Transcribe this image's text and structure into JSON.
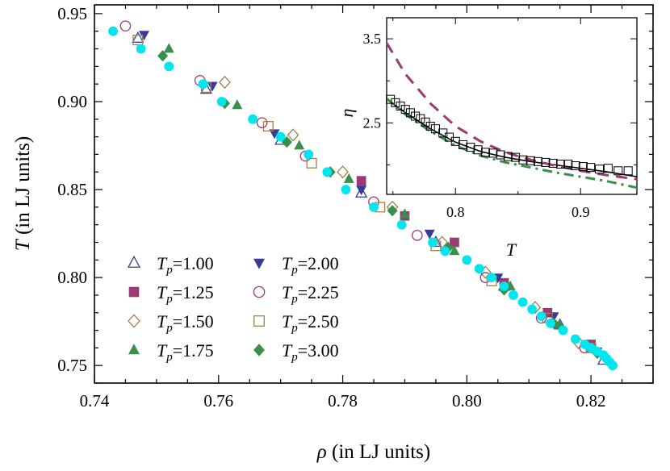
{
  "chart_data": [
    {
      "type": "scatter",
      "xlabel": {
        "symbol": "ρ",
        "text": " (in LJ units)"
      },
      "ylabel": {
        "symbol": "T",
        "text": " (in LJ units)"
      },
      "xlim": [
        0.74,
        0.83
      ],
      "ylim": [
        0.74,
        0.955
      ],
      "xticks": [
        "0.74",
        "0.76",
        "0.78",
        "0.80",
        "0.82"
      ],
      "yticks": [
        "0.75",
        "0.80",
        "0.85",
        "0.90",
        "0.95"
      ],
      "xtick_values": [
        0.74,
        0.76,
        0.78,
        0.8,
        0.82
      ],
      "ytick_values": [
        0.75,
        0.8,
        0.85,
        0.9,
        0.95
      ],
      "grid": false,
      "legend_position": "bottom-left",
      "series": [
        {
          "name": "T_p=1.00",
          "label_value": "1.00",
          "marker": "triangle-up-open",
          "color": "#3a3a9a",
          "points": [
            [
              0.747,
              0.936
            ],
            [
              0.758,
              0.907
            ],
            [
              0.77,
              0.878
            ],
            [
              0.783,
              0.848
            ],
            [
              0.795,
              0.82
            ],
            [
              0.806,
              0.795
            ],
            [
              0.815,
              0.773
            ],
            [
              0.822,
              0.753
            ]
          ]
        },
        {
          "name": "T_p=1.25",
          "label_value": "1.25",
          "marker": "square",
          "color": "#9b3a73",
          "points": [
            [
              0.783,
              0.855
            ],
            [
              0.79,
              0.835
            ],
            [
              0.798,
              0.82
            ],
            [
              0.806,
              0.797
            ],
            [
              0.813,
              0.78
            ],
            [
              0.82,
              0.762
            ]
          ]
        },
        {
          "name": "T_p=1.50",
          "label_value": "1.50",
          "marker": "diamond-open",
          "color": "#a08050",
          "points": [
            [
              0.761,
              0.911
            ],
            [
              0.772,
              0.881
            ],
            [
              0.78,
              0.86
            ],
            [
              0.788,
              0.84
            ],
            [
              0.796,
              0.82
            ],
            [
              0.803,
              0.803
            ],
            [
              0.811,
              0.783
            ],
            [
              0.818,
              0.763
            ]
          ]
        },
        {
          "name": "T_p=1.75",
          "label_value": "1.75",
          "marker": "triangle-up",
          "color": "#3a8f4a",
          "points": [
            [
              0.752,
              0.93
            ],
            [
              0.763,
              0.898
            ],
            [
              0.773,
              0.875
            ],
            [
              0.781,
              0.856
            ],
            [
              0.79,
              0.836
            ],
            [
              0.798,
              0.815
            ],
            [
              0.807,
              0.795
            ],
            [
              0.815,
              0.773
            ],
            [
              0.82,
              0.76
            ]
          ]
        },
        {
          "name": "T_p=2.00",
          "label_value": "2.00",
          "marker": "triangle-down",
          "color": "#3a3a9a",
          "points": [
            [
              0.748,
              0.938
            ],
            [
              0.759,
              0.909
            ],
            [
              0.769,
              0.882
            ],
            [
              0.783,
              0.85
            ],
            [
              0.794,
              0.825
            ],
            [
              0.805,
              0.8
            ],
            [
              0.814,
              0.778
            ],
            [
              0.821,
              0.758
            ]
          ]
        },
        {
          "name": "T_p=2.25",
          "label_value": "2.25",
          "marker": "circle-open",
          "color": "#9b3a73",
          "points": [
            [
              0.745,
              0.943
            ],
            [
              0.757,
              0.912
            ],
            [
              0.767,
              0.888
            ],
            [
              0.774,
              0.869
            ],
            [
              0.785,
              0.843
            ],
            [
              0.792,
              0.824
            ],
            [
              0.803,
              0.8
            ],
            [
              0.812,
              0.777
            ],
            [
              0.819,
              0.76
            ]
          ]
        },
        {
          "name": "T_p=2.50",
          "label_value": "2.50",
          "marker": "square-open",
          "color": "#a08050",
          "points": [
            [
              0.747,
              0.935
            ],
            [
              0.758,
              0.908
            ],
            [
              0.768,
              0.886
            ],
            [
              0.775,
              0.865
            ],
            [
              0.786,
              0.84
            ],
            [
              0.795,
              0.818
            ],
            [
              0.804,
              0.798
            ],
            [
              0.813,
              0.777
            ],
            [
              0.82,
              0.76
            ]
          ]
        },
        {
          "name": "T_p=3.00",
          "label_value": "3.00",
          "marker": "diamond",
          "color": "#3a8f4a",
          "points": [
            [
              0.751,
              0.926
            ],
            [
              0.761,
              0.899
            ],
            [
              0.771,
              0.877
            ],
            [
              0.778,
              0.86
            ],
            [
              0.788,
              0.838
            ],
            [
              0.797,
              0.817
            ],
            [
              0.806,
              0.793
            ],
            [
              0.814,
              0.774
            ],
            [
              0.821,
              0.757
            ]
          ]
        },
        {
          "marker": "circle",
          "color": "#00e5ee",
          "points": [
            [
              0.743,
              0.94
            ],
            [
              0.7475,
              0.93
            ],
            [
              0.752,
              0.92
            ],
            [
              0.7575,
              0.91
            ],
            [
              0.7605,
              0.9
            ],
            [
              0.7655,
              0.89
            ],
            [
              0.77,
              0.88
            ],
            [
              0.7745,
              0.87
            ],
            [
              0.7775,
              0.86
            ],
            [
              0.7805,
              0.85
            ],
            [
              0.785,
              0.84
            ],
            [
              0.7895,
              0.83
            ],
            [
              0.7945,
              0.82
            ],
            [
              0.7965,
              0.815
            ],
            [
              0.8,
              0.81
            ],
            [
              0.802,
              0.805
            ],
            [
              0.804,
              0.8
            ],
            [
              0.806,
              0.795
            ],
            [
              0.8075,
              0.79
            ],
            [
              0.809,
              0.786
            ],
            [
              0.8105,
              0.782
            ],
            [
              0.812,
              0.778
            ],
            [
              0.8135,
              0.774
            ],
            [
              0.8155,
              0.77
            ],
            [
              0.8175,
              0.765
            ],
            [
              0.819,
              0.762
            ],
            [
              0.82,
              0.76
            ],
            [
              0.821,
              0.758
            ],
            [
              0.822,
              0.756
            ],
            [
              0.8225,
              0.754
            ],
            [
              0.823,
              0.752
            ],
            [
              0.8235,
              0.75
            ]
          ]
        }
      ]
    },
    {
      "type": "line",
      "inset": true,
      "xlabel": "T",
      "ylabel": "η",
      "xlim": [
        0.745,
        0.945
      ],
      "ylim": [
        1.65,
        3.75
      ],
      "xticks": [
        "0.8",
        "0.9"
      ],
      "xtick_values": [
        0.8,
        0.9
      ],
      "yticks": [
        "3.5",
        "2.5"
      ],
      "ytick_values": [
        3.5,
        2.5
      ],
      "series": [
        {
          "style": "solid",
          "color": "#000000",
          "x": [
            0.745,
            0.76,
            0.78,
            0.8,
            0.82,
            0.84,
            0.86,
            0.88,
            0.9,
            0.92,
            0.945
          ],
          "y": [
            2.78,
            2.62,
            2.43,
            2.27,
            2.16,
            2.09,
            2.04,
            2.0,
            1.96,
            1.92,
            1.86
          ]
        },
        {
          "style": "dashed",
          "color": "#9b3a73",
          "x": [
            0.745,
            0.76,
            0.78,
            0.8,
            0.82,
            0.84,
            0.86,
            0.88,
            0.9,
            0.92,
            0.945
          ],
          "y": [
            3.45,
            3.08,
            2.73,
            2.46,
            2.28,
            2.15,
            2.06,
            1.99,
            1.93,
            1.88,
            1.83
          ]
        },
        {
          "style": "dashdot",
          "color": "#3a8f4a",
          "x": [
            0.745,
            0.76,
            0.78,
            0.8,
            0.82,
            0.84,
            0.86,
            0.88,
            0.9,
            0.92,
            0.945
          ],
          "y": [
            2.79,
            2.6,
            2.4,
            2.23,
            2.11,
            2.03,
            1.97,
            1.91,
            1.86,
            1.81,
            1.73
          ]
        },
        {
          "style": "markers-square-open",
          "color": "#000000",
          "x": [
            0.748,
            0.752,
            0.756,
            0.76,
            0.764,
            0.768,
            0.772,
            0.776,
            0.78,
            0.784,
            0.79,
            0.795,
            0.8,
            0.806,
            0.812,
            0.818,
            0.824,
            0.83,
            0.836,
            0.842,
            0.848,
            0.854,
            0.86,
            0.866,
            0.872,
            0.878,
            0.884,
            0.89,
            0.896,
            0.902,
            0.908,
            0.915,
            0.922,
            0.93,
            0.938
          ],
          "y": [
            2.78,
            2.74,
            2.7,
            2.66,
            2.62,
            2.58,
            2.55,
            2.51,
            2.46,
            2.43,
            2.38,
            2.33,
            2.28,
            2.24,
            2.21,
            2.18,
            2.15,
            2.14,
            2.12,
            2.1,
            2.09,
            2.06,
            2.05,
            2.04,
            2.03,
            2.02,
            2.01,
            2.01,
            1.99,
            1.98,
            1.97,
            1.95,
            1.96,
            1.93,
            1.93
          ]
        }
      ]
    }
  ]
}
